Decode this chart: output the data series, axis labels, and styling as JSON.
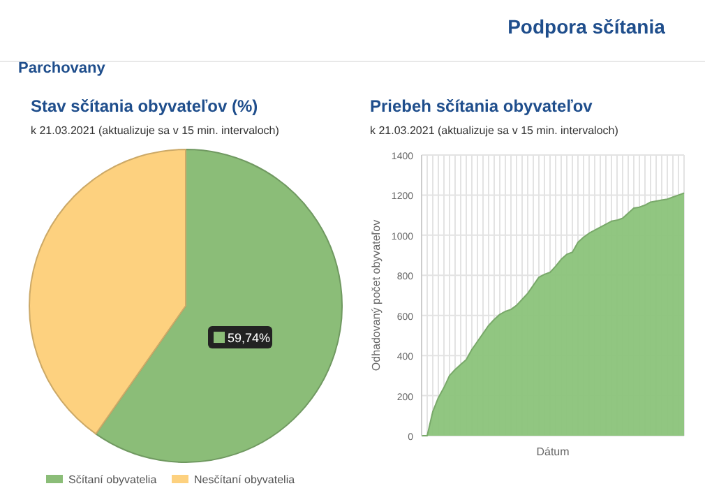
{
  "chart_data": [
    {
      "type": "pie",
      "title": "Stav sčítania obyvateľov (%)",
      "subtitle": "k 21.03.2021 (aktualizuje sa v 15 min. intervaloch)",
      "annotations": [
        "Podpora sčítania",
        "Parchovany"
      ],
      "categories": [
        "Sčítaní obyvatelia",
        "Nesčítaní obyvatelia"
      ],
      "values": [
        59.74,
        40.26
      ],
      "colors": [
        "#8bbd78",
        "#fdd17f"
      ],
      "value_labels": [
        "59,74%",
        null
      ],
      "legend": "bottom"
    },
    {
      "type": "area",
      "title": "Priebeh sčítania obyvateľov",
      "subtitle": "k 21.03.2021 (aktualizuje sa v 15 min. intervaloch)",
      "xlabel": "Dátum",
      "ylabel": "Odhadovaný počet obyvateľov",
      "categories": [
        null,
        null,
        null,
        null,
        null,
        null,
        null,
        null,
        null,
        null,
        null,
        null,
        null,
        null,
        null,
        null,
        null,
        null,
        null,
        null,
        null,
        null,
        null,
        null,
        null,
        null,
        null,
        null,
        null,
        null,
        null,
        null,
        null,
        null,
        null,
        null,
        null,
        null,
        null,
        null,
        null,
        null,
        null,
        null,
        null,
        null,
        null,
        null
      ],
      "series": [
        {
          "color": "#8bc37a",
          "values": [
            0,
            0,
            120,
            190,
            240,
            300,
            330,
            355,
            380,
            430,
            470,
            510,
            550,
            580,
            605,
            620,
            630,
            650,
            680,
            710,
            750,
            790,
            805,
            815,
            845,
            880,
            905,
            915,
            965,
            990,
            1010,
            1025,
            1040,
            1055,
            1070,
            1075,
            1085,
            1110,
            1135,
            1140,
            1150,
            1165,
            1170,
            1175,
            1180,
            1190,
            1200,
            1210
          ]
        }
      ],
      "ylim": [
        0,
        1400
      ],
      "yticks": [
        0,
        200,
        400,
        600,
        800,
        1000,
        1200,
        1400
      ],
      "grid": true
    }
  ]
}
